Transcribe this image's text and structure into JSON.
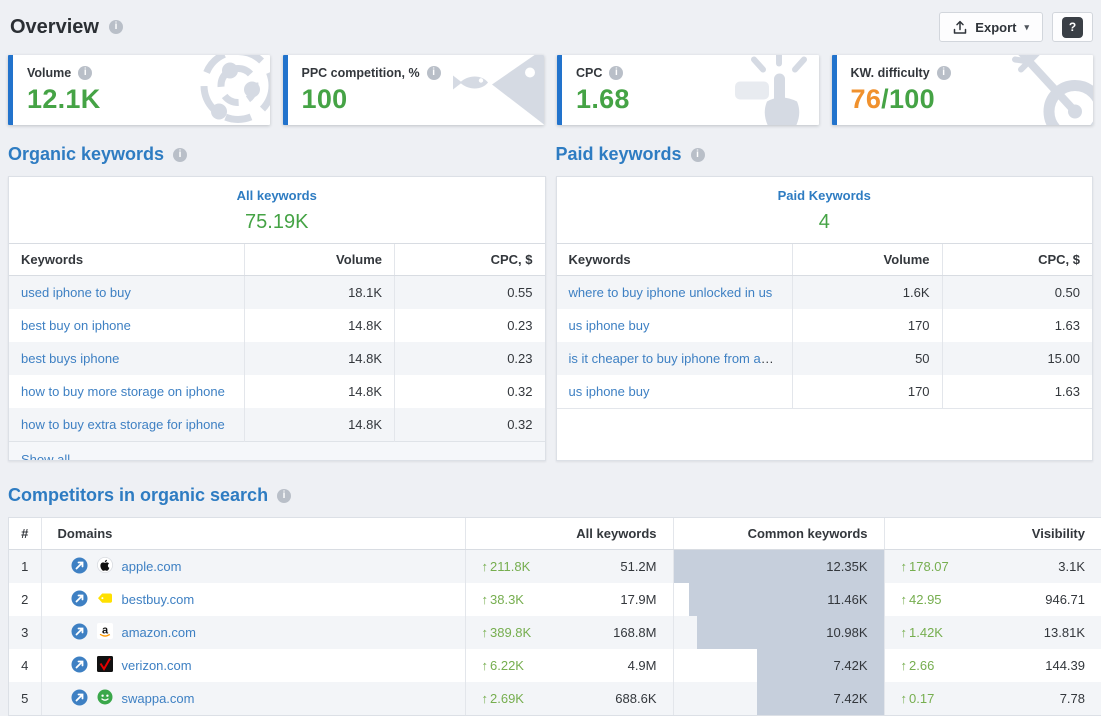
{
  "colors": {
    "accent_blue": "#2273cc",
    "heading_blue": "#2e7cc2",
    "link_blue": "#3e80c3",
    "value_green": "#45a345",
    "delta_green": "#76ae4f",
    "warning_orange": "#f0912d",
    "bar_fill": "#c6cfdc",
    "row_stripe": "#f3f5f8"
  },
  "icons": {
    "info_glyph": "i",
    "help_glyph": "?",
    "caret_glyph": "▾",
    "up_arrow": "↑"
  },
  "header": {
    "title": "Overview",
    "export_label": "Export"
  },
  "cards": [
    {
      "label": "Volume",
      "value": "12.1K",
      "suffix": "",
      "icon": "radar-icon"
    },
    {
      "label": "PPC competition, %",
      "value": "100",
      "suffix": "",
      "icon": "fish-icon"
    },
    {
      "label": "CPC",
      "value": "1.68",
      "suffix": "",
      "icon": "click-icon"
    },
    {
      "label": "KW. difficulty",
      "value": "76",
      "suffix": "/100",
      "icon": "target-icon"
    }
  ],
  "organic": {
    "heading": "Organic keywords",
    "summary_label": "All keywords",
    "summary_value": "75.19K",
    "columns": [
      "Keywords",
      "Volume",
      "CPC, $"
    ],
    "rows": [
      {
        "keyword": "used iphone to buy",
        "volume": "18.1K",
        "cpc": "0.55"
      },
      {
        "keyword": "best buy on iphone",
        "volume": "14.8K",
        "cpc": "0.23"
      },
      {
        "keyword": "best buys iphone",
        "volume": "14.8K",
        "cpc": "0.23"
      },
      {
        "keyword": "how to buy more storage on iphone",
        "volume": "14.8K",
        "cpc": "0.32"
      },
      {
        "keyword": "how to buy extra storage for iphone",
        "volume": "14.8K",
        "cpc": "0.32"
      }
    ],
    "show_all_label": "Show all"
  },
  "paid": {
    "heading": "Paid keywords",
    "summary_label": "Paid Keywords",
    "summary_value": "4",
    "columns": [
      "Keywords",
      "Volume",
      "CPC, $"
    ],
    "rows": [
      {
        "keyword": "where to buy iphone unlocked in us",
        "volume": "1.6K",
        "cpc": "0.50"
      },
      {
        "keyword": "us iphone buy",
        "volume": "170",
        "cpc": "1.63"
      },
      {
        "keyword": "is it cheaper to buy iphone from apple o...",
        "volume": "50",
        "cpc": "15.00"
      },
      {
        "keyword": "us iphone buy",
        "volume": "170",
        "cpc": "1.63"
      }
    ]
  },
  "competitors": {
    "heading": "Competitors in organic search",
    "columns": [
      "#",
      "Domains",
      "All keywords",
      "Common keywords",
      "Visibility"
    ],
    "rows": [
      {
        "rank": "1",
        "domain": "apple.com",
        "favicon": "apple-favicon",
        "all_delta": "211.8K",
        "all_value": "51.2M",
        "common_value": "12.35K",
        "common_fill_pct": 100,
        "vis_delta": "178.07",
        "vis_value": "3.1K"
      },
      {
        "rank": "2",
        "domain": "bestbuy.com",
        "favicon": "bestbuy-favicon",
        "all_delta": "38.3K",
        "all_value": "17.9M",
        "common_value": "11.46K",
        "common_fill_pct": 92.8,
        "vis_delta": "42.95",
        "vis_value": "946.71"
      },
      {
        "rank": "3",
        "domain": "amazon.com",
        "favicon": "amazon-favicon",
        "all_delta": "389.8K",
        "all_value": "168.8M",
        "common_value": "10.98K",
        "common_fill_pct": 88.9,
        "vis_delta": "1.42K",
        "vis_value": "13.81K"
      },
      {
        "rank": "4",
        "domain": "verizon.com",
        "favicon": "verizon-favicon",
        "all_delta": "6.22K",
        "all_value": "4.9M",
        "common_value": "7.42K",
        "common_fill_pct": 60.1,
        "vis_delta": "2.66",
        "vis_value": "144.39"
      },
      {
        "rank": "5",
        "domain": "swappa.com",
        "favicon": "swappa-favicon",
        "all_delta": "2.69K",
        "all_value": "688.6K",
        "common_value": "7.42K",
        "common_fill_pct": 60.1,
        "vis_delta": "0.17",
        "vis_value": "7.78"
      }
    ]
  }
}
